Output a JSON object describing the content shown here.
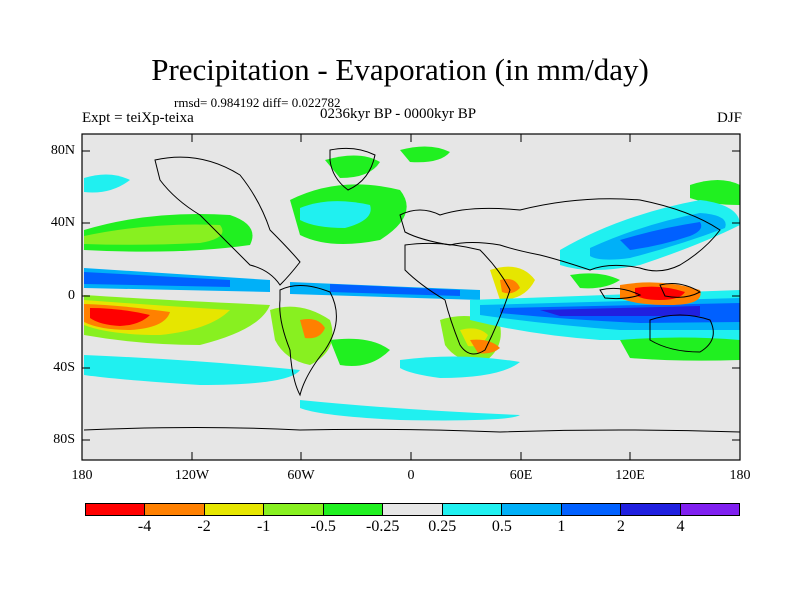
{
  "title": "Precipitation - Evaporation (in mm/day)",
  "stats": "rmsd= 0.984192 diff= 0.022782",
  "experiment": "Expt = teiXp-teixa",
  "period": "0236kyr BP - 0000kyr BP",
  "season": "DJF",
  "y_axis_labels": [
    "80N",
    "40N",
    "0",
    "40S",
    "80S"
  ],
  "x_axis_labels": [
    "180",
    "120W",
    "60W",
    "0",
    "60E",
    "120E",
    "180"
  ],
  "colorbar": {
    "colors": [
      "#ff0000",
      "#ff8000",
      "#e6e600",
      "#88f020",
      "#20f020",
      "#e6e6e6",
      "#20f0f0",
      "#00b0f8",
      "#0060ff",
      "#2020e0",
      "#8020f0"
    ],
    "labels": [
      "-4",
      "-2",
      "-1",
      "-0.5",
      "-0.25",
      "0.25",
      "0.5",
      "1",
      "2",
      "4"
    ]
  },
  "colors": {
    "background_land_ocean": "#e6e6e6",
    "coastline": "#000000"
  }
}
